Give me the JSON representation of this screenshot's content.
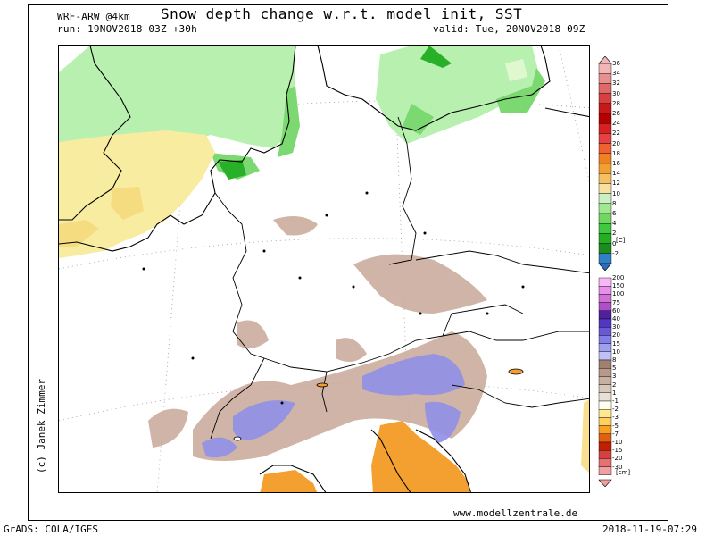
{
  "header": {
    "model": "WRF-ARW @4km",
    "title": "Snow depth change w.r.t. model init, SST",
    "run": "run: 19NOV2018 03Z +30h",
    "valid": "valid: Tue, 20NOV2018 09Z"
  },
  "credit": "(c) Janek Zimmer",
  "website": "www.modellzentrale.de",
  "software": "GrADS: COLA/IGES",
  "timestamp": "2018-11-19-07:29",
  "sst_bar": {
    "unit": "[C]",
    "labels": [
      "36",
      "34",
      "32",
      "30",
      "28",
      "26",
      "24",
      "22",
      "20",
      "18",
      "16",
      "14",
      "12",
      "10",
      "8",
      "6",
      "4",
      "2",
      "0",
      "-2"
    ],
    "colors": [
      "#f2b6b6",
      "#e89090",
      "#e06868",
      "#d84040",
      "#c81818",
      "#b40000",
      "#d82020",
      "#e84040",
      "#f06030",
      "#f08020",
      "#f4a030",
      "#f6c060",
      "#f8e0a0",
      "#c8f0c0",
      "#a0e890",
      "#70d860",
      "#40c840",
      "#20b020",
      "#1c8c1c",
      "#3080c8"
    ]
  },
  "snow_bar": {
    "unit": "[cm]",
    "labels": [
      "200",
      "150",
      "100",
      "75",
      "60",
      "40",
      "30",
      "20",
      "15",
      "10",
      "8",
      "5",
      "3",
      "2",
      "1",
      "-1",
      "-2",
      "-3",
      "-5",
      "-7",
      "-10",
      "-15",
      "-20",
      "-30"
    ],
    "colors": [
      "#f8b8f8",
      "#e890e8",
      "#d070d8",
      "#b050c8",
      "#5020a0",
      "#5038c0",
      "#6858d8",
      "#8080e8",
      "#a0a0f0",
      "#c0c0f8",
      "#a08070",
      "#b89888",
      "#c8b0a0",
      "#d8c8b8",
      "#e8e0d8",
      "#fffff0",
      "#ffe890",
      "#ffd060",
      "#f8a020",
      "#e06010",
      "#c02000",
      "#d84040",
      "#e87070",
      "#f0a0a0"
    ]
  }
}
